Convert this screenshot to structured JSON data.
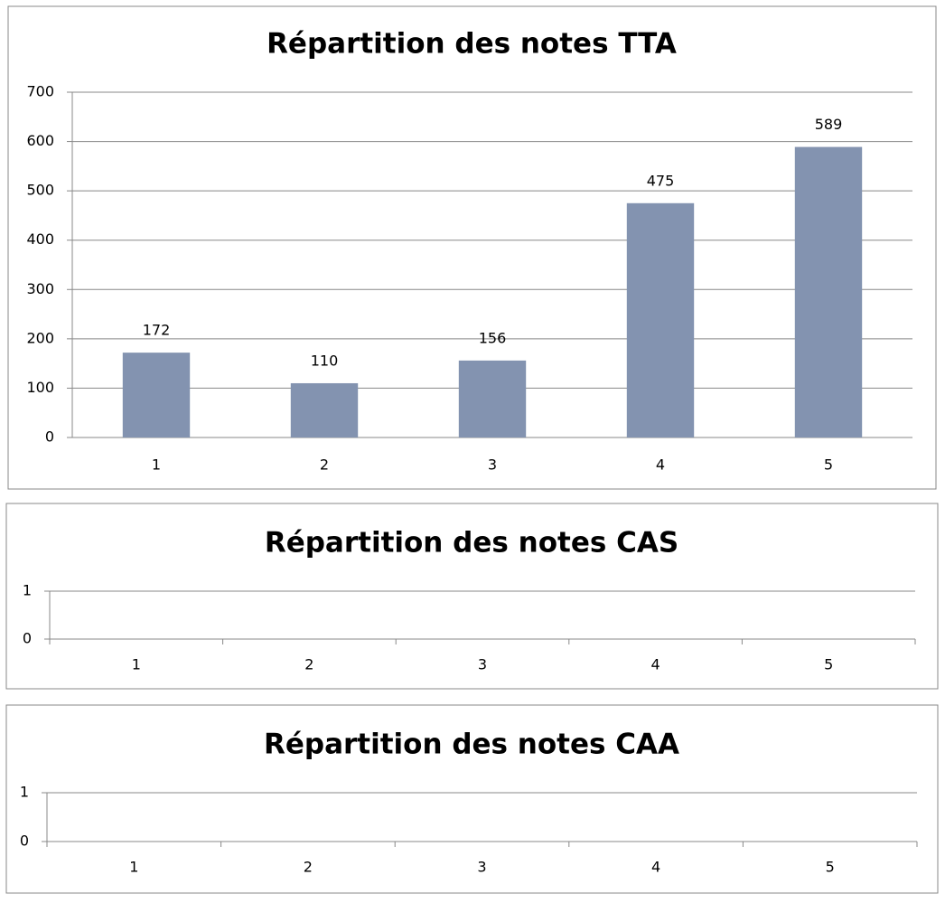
{
  "chart_data": [
    {
      "type": "bar",
      "title": "Répartition des notes TTA",
      "categories": [
        "1",
        "2",
        "3",
        "4",
        "5"
      ],
      "values": [
        172,
        110,
        156,
        475,
        589
      ],
      "color": "#8393b0",
      "ylim": [
        0,
        700
      ],
      "yticks": [
        0,
        100,
        200,
        300,
        400,
        500,
        600,
        700
      ],
      "grid": true
    },
    {
      "type": "bar",
      "title": "Répartition des notes CAS",
      "categories": [
        "1",
        "2",
        "3",
        "4",
        "5"
      ],
      "ylim": [
        0,
        1
      ],
      "yticks": [
        0,
        1
      ],
      "grid": true
    },
    {
      "type": "bar",
      "title": "Répartition des notes CAA",
      "categories": [
        "1",
        "2",
        "3",
        "4",
        "5"
      ],
      "ylim": [
        0,
        1
      ],
      "yticks": [
        0,
        1
      ],
      "grid": true
    }
  ]
}
